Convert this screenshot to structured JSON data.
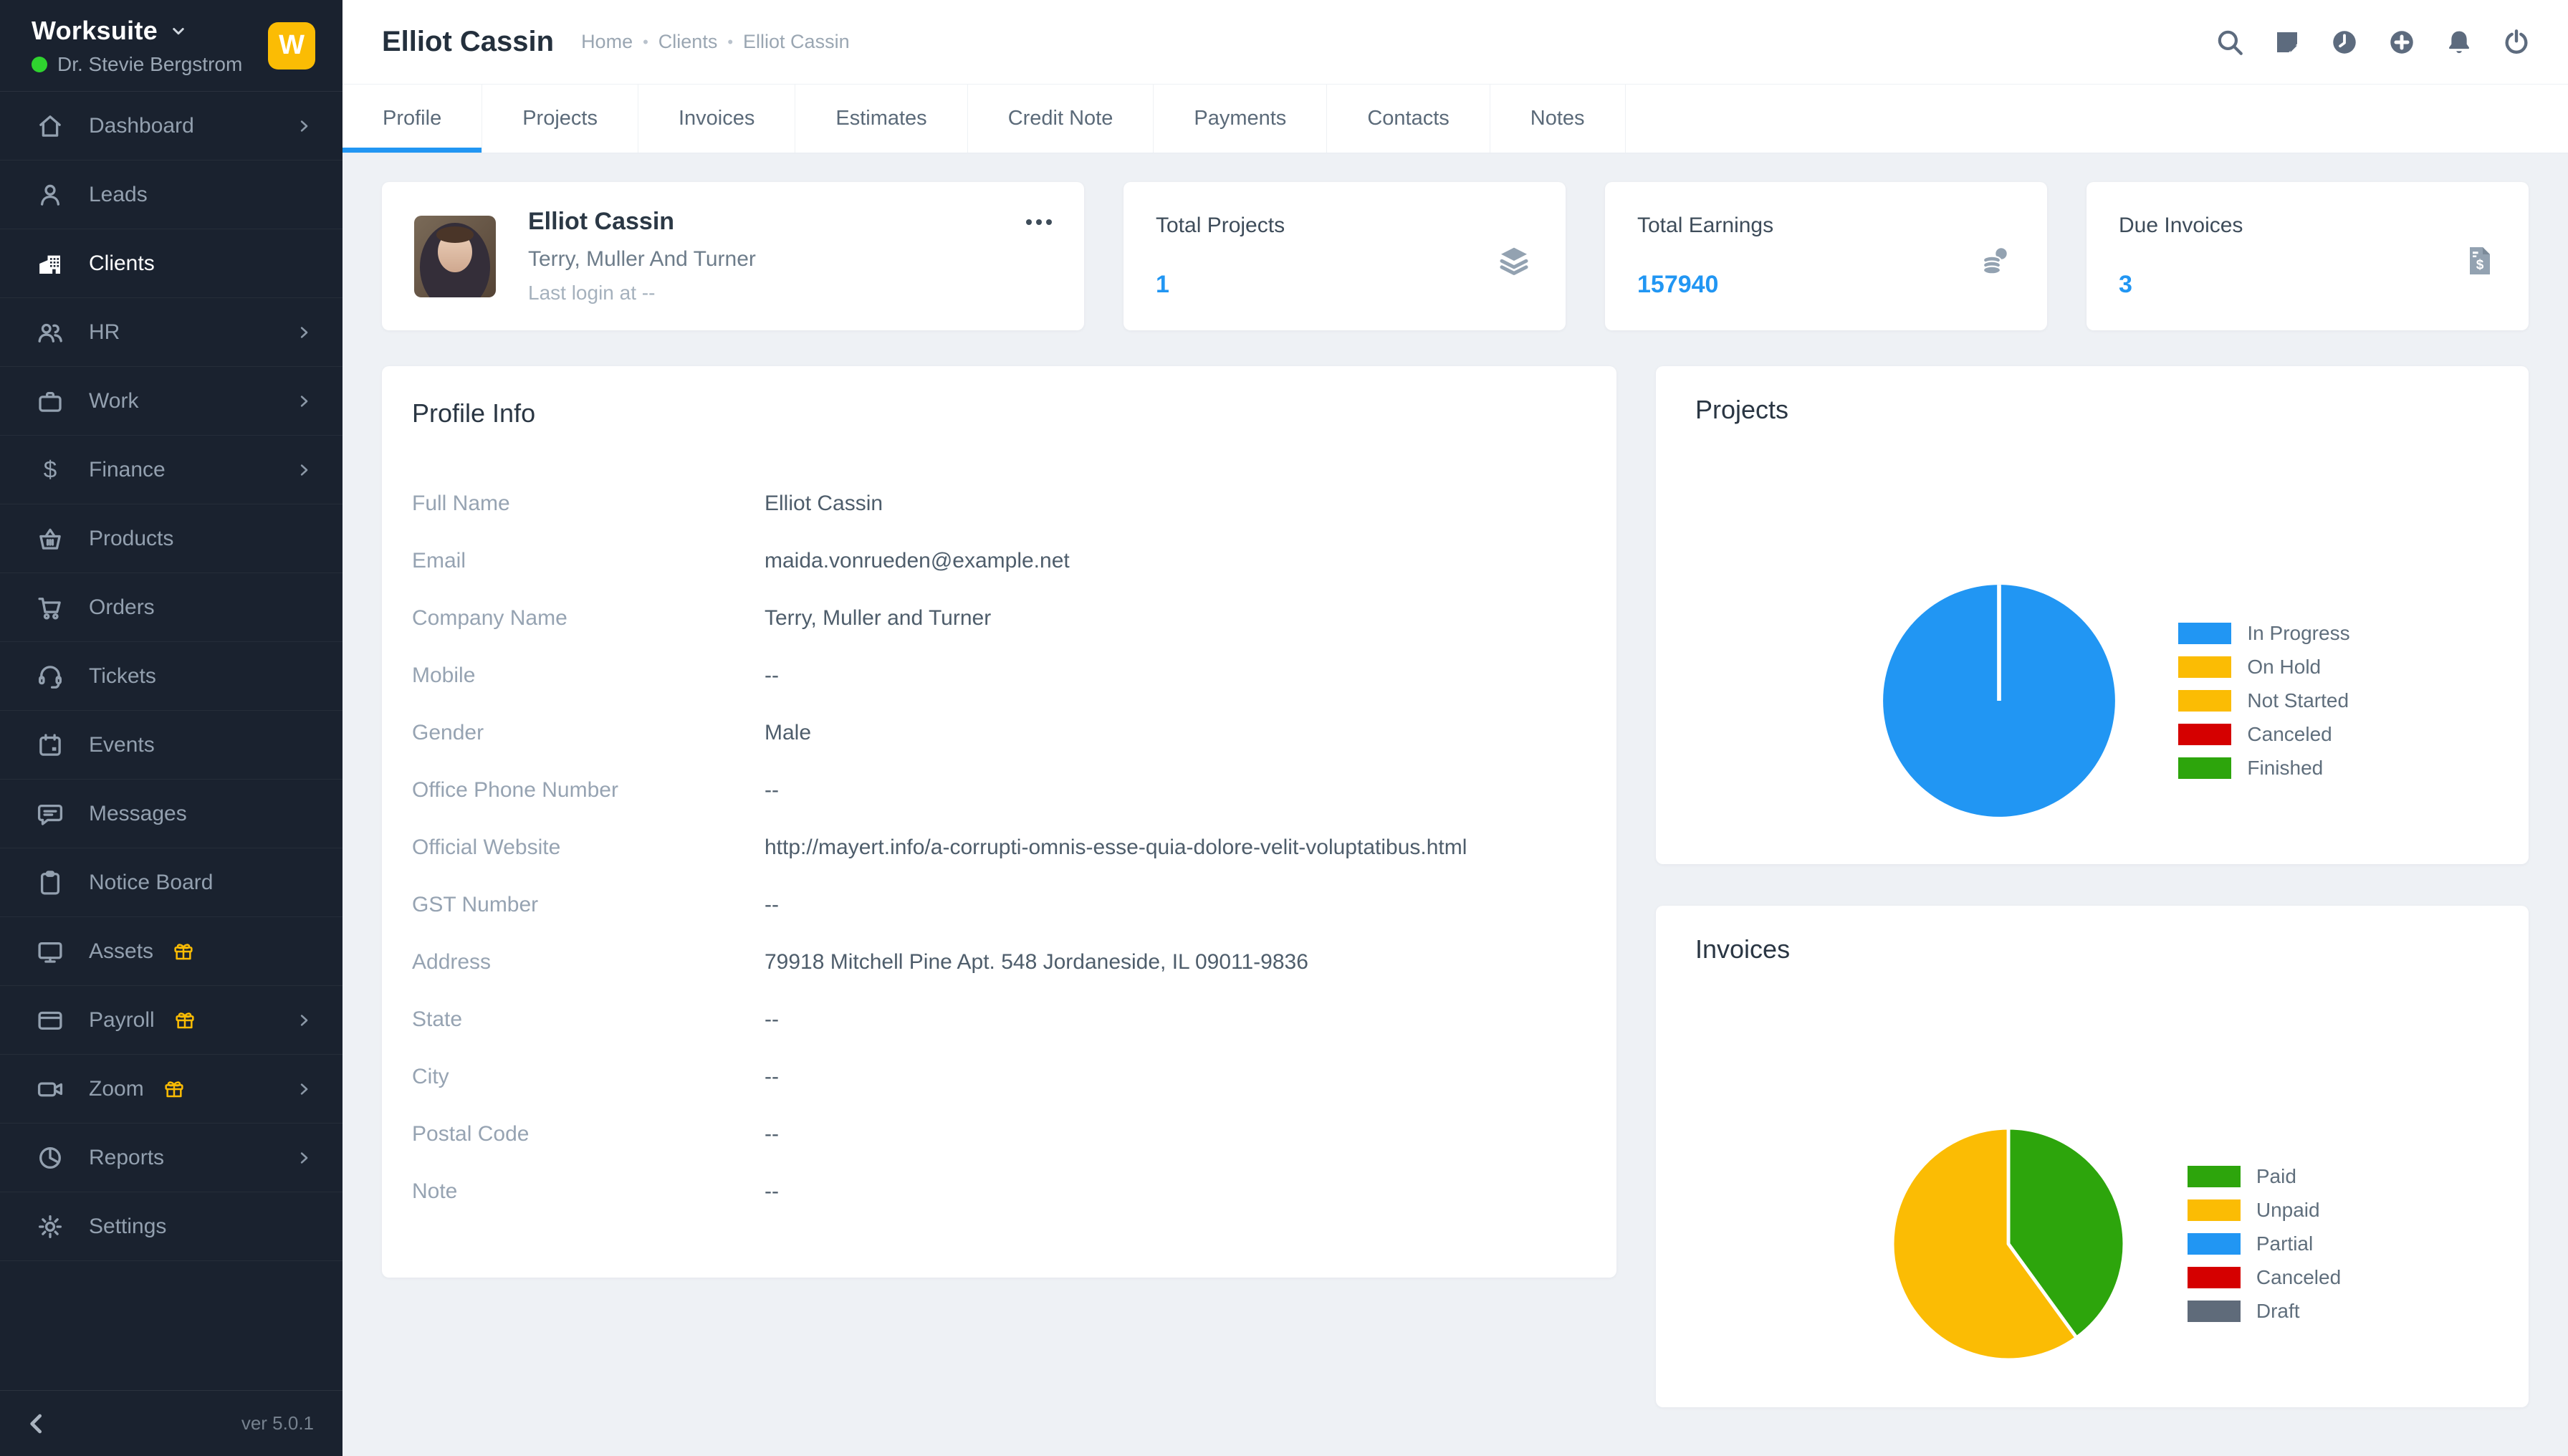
{
  "app": {
    "brand": "Worksuite",
    "user": "Dr. Stevie Bergstrom",
    "logo_letter": "W",
    "version": "ver 5.0.1",
    "status_color": "#2fd32f",
    "accent_color": "#2196f3"
  },
  "sidebar": {
    "items": [
      {
        "label": "Dashboard",
        "icon": "home-icon",
        "chevron": true,
        "gift": false,
        "active": false
      },
      {
        "label": "Leads",
        "icon": "user-icon",
        "chevron": false,
        "gift": false,
        "active": false
      },
      {
        "label": "Clients",
        "icon": "building-icon",
        "chevron": false,
        "gift": false,
        "active": true
      },
      {
        "label": "HR",
        "icon": "users-icon",
        "chevron": true,
        "gift": false,
        "active": false
      },
      {
        "label": "Work",
        "icon": "briefcase-icon",
        "chevron": true,
        "gift": false,
        "active": false
      },
      {
        "label": "Finance",
        "icon": "dollar-icon",
        "chevron": true,
        "gift": false,
        "active": false
      },
      {
        "label": "Products",
        "icon": "basket-icon",
        "chevron": false,
        "gift": false,
        "active": false
      },
      {
        "label": "Orders",
        "icon": "cart-icon",
        "chevron": false,
        "gift": false,
        "active": false
      },
      {
        "label": "Tickets",
        "icon": "headset-icon",
        "chevron": false,
        "gift": false,
        "active": false
      },
      {
        "label": "Events",
        "icon": "calendar-icon",
        "chevron": false,
        "gift": false,
        "active": false
      },
      {
        "label": "Messages",
        "icon": "chat-icon",
        "chevron": false,
        "gift": false,
        "active": false
      },
      {
        "label": "Notice Board",
        "icon": "clipboard-icon",
        "chevron": false,
        "gift": false,
        "active": false
      },
      {
        "label": "Assets",
        "icon": "monitor-icon",
        "chevron": false,
        "gift": true,
        "active": false
      },
      {
        "label": "Payroll",
        "icon": "card-icon",
        "chevron": true,
        "gift": true,
        "active": false
      },
      {
        "label": "Zoom",
        "icon": "video-icon",
        "chevron": true,
        "gift": true,
        "active": false
      },
      {
        "label": "Reports",
        "icon": "pie-icon",
        "chevron": true,
        "gift": false,
        "active": false
      },
      {
        "label": "Settings",
        "icon": "gear-icon",
        "chevron": false,
        "gift": false,
        "active": false
      }
    ]
  },
  "header": {
    "title": "Elliot Cassin",
    "breadcrumb": [
      "Home",
      "Clients",
      "Elliot Cassin"
    ],
    "topbar_icons": [
      "search",
      "notes",
      "recent",
      "add",
      "notifications",
      "logout"
    ]
  },
  "tabs": [
    {
      "label": "Profile",
      "active": true
    },
    {
      "label": "Projects",
      "active": false
    },
    {
      "label": "Invoices",
      "active": false
    },
    {
      "label": "Estimates",
      "active": false
    },
    {
      "label": "Credit Note",
      "active": false
    },
    {
      "label": "Payments",
      "active": false
    },
    {
      "label": "Contacts",
      "active": false
    },
    {
      "label": "Notes",
      "active": false
    }
  ],
  "profile_card": {
    "name": "Elliot Cassin",
    "company": "Terry, Muller And Turner",
    "last_login": "Last login at --"
  },
  "stats": [
    {
      "label": "Total Projects",
      "value": "1",
      "icon": "layer-group-icon"
    },
    {
      "label": "Total Earnings",
      "value": "157940",
      "icon": "coins-icon"
    },
    {
      "label": "Due Invoices",
      "value": "3",
      "icon": "file-invoice-dollar-icon"
    }
  ],
  "profile_info": {
    "heading": "Profile Info",
    "rows": [
      {
        "label": "Full Name",
        "value": "Elliot Cassin"
      },
      {
        "label": "Email",
        "value": "maida.vonrueden@example.net"
      },
      {
        "label": "Company Name",
        "value": "Terry, Muller and Turner"
      },
      {
        "label": "Mobile",
        "value": "--"
      },
      {
        "label": "Gender",
        "value": "Male"
      },
      {
        "label": "Office Phone Number",
        "value": "--"
      },
      {
        "label": "Official Website",
        "value": "http://mayert.info/a-corrupti-omnis-esse-quia-dolore-velit-voluptatibus.html"
      },
      {
        "label": "GST Number",
        "value": "--"
      },
      {
        "label": "Address",
        "value": "79918 Mitchell Pine Apt. 548 Jordaneside, IL 09011-9836"
      },
      {
        "label": "State",
        "value": "--"
      },
      {
        "label": "City",
        "value": "--"
      },
      {
        "label": "Postal Code",
        "value": "--"
      },
      {
        "label": "Note",
        "value": "--"
      }
    ]
  },
  "chart_data": [
    {
      "type": "pie",
      "title": "Projects",
      "unit": "percent",
      "legend_position": "right",
      "series": [
        {
          "label": "In Progress",
          "value": 100,
          "color": "#2196f3"
        },
        {
          "label": "On Hold",
          "value": 0,
          "color": "#fbbc04"
        },
        {
          "label": "Not Started",
          "value": 0,
          "color": "#fbbc04"
        },
        {
          "label": "Canceled",
          "value": 0,
          "color": "#d50000"
        },
        {
          "label": "Finished",
          "value": 0,
          "color": "#2da50c"
        }
      ]
    },
    {
      "type": "pie",
      "title": "Invoices",
      "unit": "percent (estimated from slice angles)",
      "legend_position": "right",
      "series": [
        {
          "label": "Paid",
          "value": 40,
          "color": "#2da50c"
        },
        {
          "label": "Unpaid",
          "value": 60,
          "color": "#fbbc04"
        },
        {
          "label": "Partial",
          "value": 0,
          "color": "#2196f3"
        },
        {
          "label": "Canceled",
          "value": 0,
          "color": "#d50000"
        },
        {
          "label": "Draft",
          "value": 0,
          "color": "#5f6b7a"
        }
      ]
    }
  ]
}
